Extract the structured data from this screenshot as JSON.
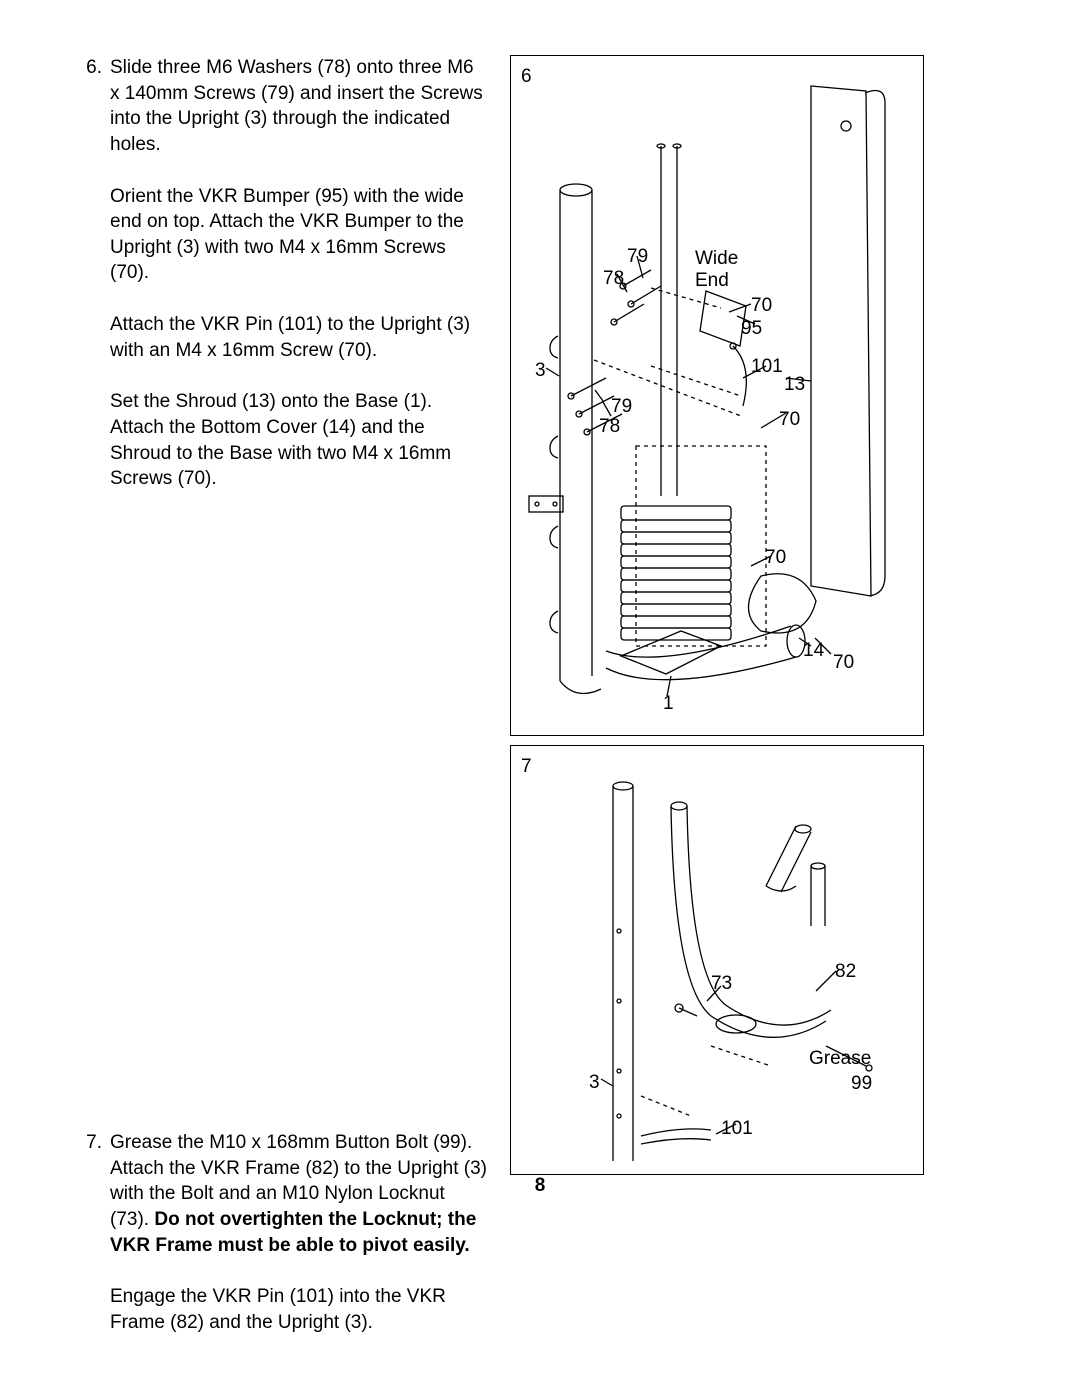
{
  "page_number": "8",
  "text_color": "#000000",
  "bg_color": "#ffffff",
  "font_size_pt": 14,
  "steps": [
    {
      "num": "6.",
      "paras": [
        "Slide three M6 Washers (78) onto three M6 x 140mm Screws (79) and insert the Screws into the Upright (3) through the indicated holes.",
        "Orient the VKR Bumper (95) with the wide end on top. Attach the VKR Bumper to the Upright (3) with two M4 x 16mm Screws (70).",
        "Attach the VKR Pin (101) to the Upright (3) with an M4 x 16mm Screw (70).",
        "Set the Shroud (13) onto the Base (1). Attach the Bottom Cover (14) and the Shroud to the Base with two M4 x 16mm Screws (70)."
      ]
    },
    {
      "num": "7.",
      "paras": [
        "Grease the M10 x 168mm Button Bolt (99). Attach the VKR Frame (82) to the Upright (3) with the Bolt and an M10 Nylon Locknut (73). <b>Do not overtighten the Locknut; the VKR Frame must be able to pivot easily.</b>",
        "Engage the VKR Pin (101) into the VKR Frame (82) and the Upright (3)."
      ]
    }
  ],
  "fig6": {
    "number": "6",
    "labels": {
      "c3": "3",
      "c79a": "79",
      "c78a": "78",
      "c79b": "79",
      "c78b": "78",
      "wide": "Wide",
      "end": "End",
      "c70a": "70",
      "c95": "95",
      "c101": "101",
      "c13": "13",
      "c70b": "70",
      "c70c": "70",
      "c14": "14",
      "c70d": "70",
      "c1": "1"
    }
  },
  "fig7": {
    "number": "7",
    "labels": {
      "c3": "3",
      "c73": "73",
      "c82": "82",
      "grease": "Grease",
      "c99": "99",
      "c101": "101"
    }
  }
}
